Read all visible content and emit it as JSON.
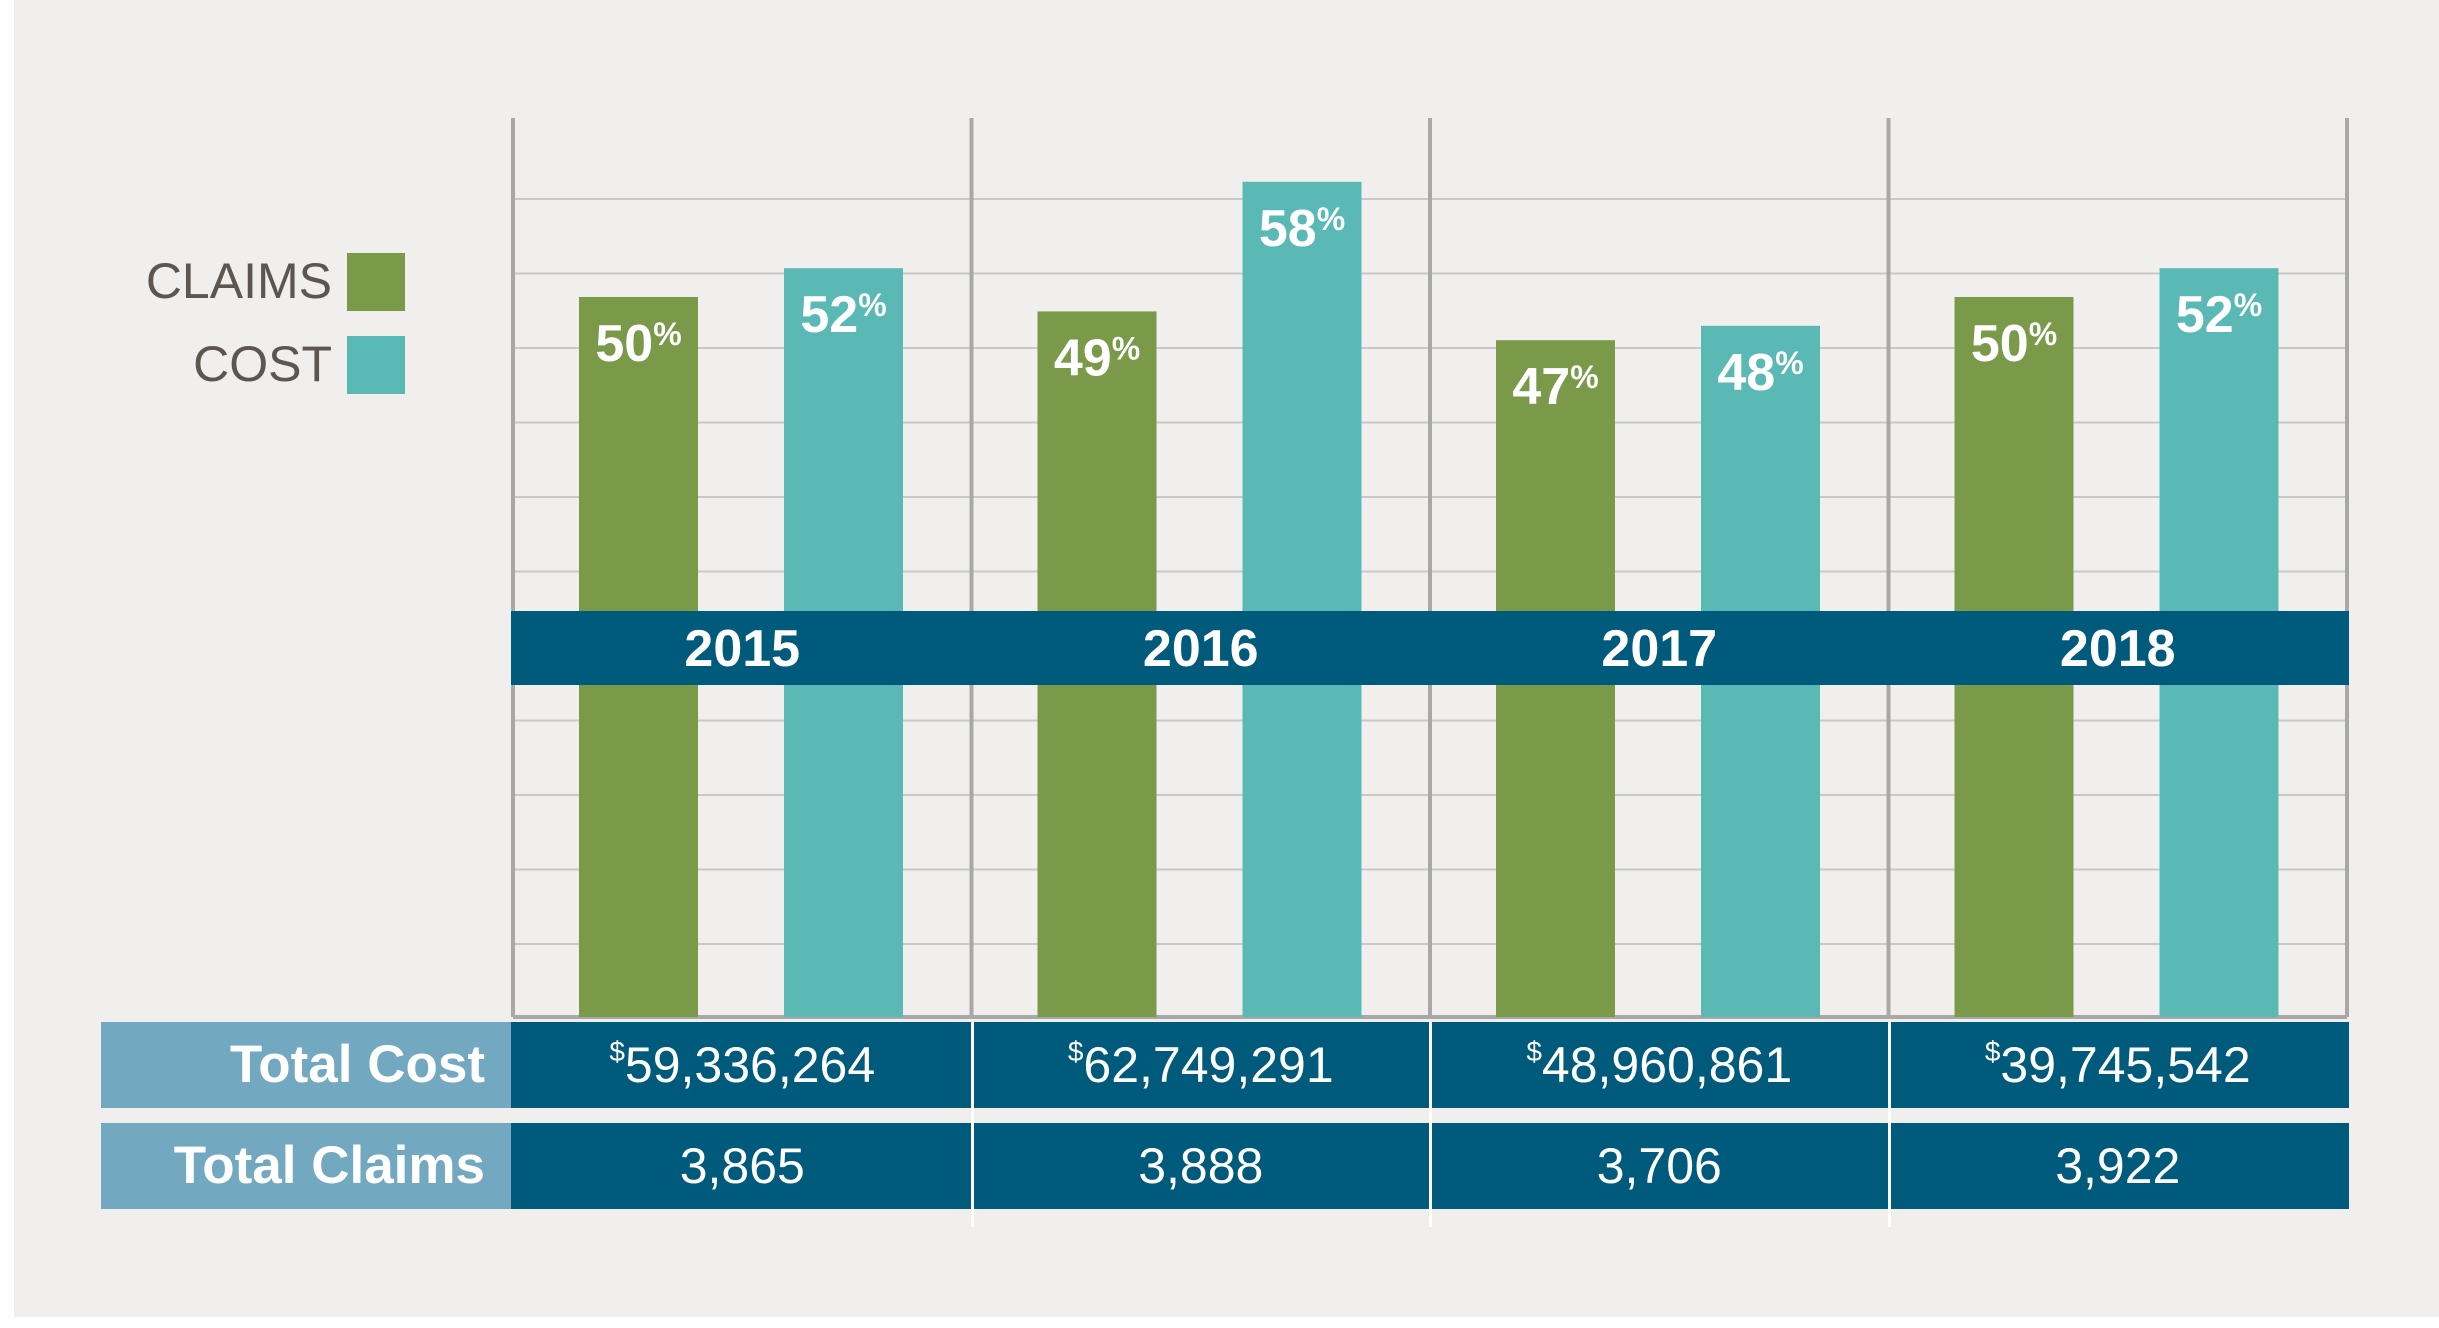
{
  "chart_data": {
    "type": "bar",
    "categories": [
      "2015",
      "2016",
      "2017",
      "2018"
    ],
    "series": [
      {
        "name": "CLAIMS",
        "color": "#7a9a4a",
        "values": [
          50,
          49,
          47,
          50
        ]
      },
      {
        "name": "COST",
        "color": "#5ab8b5",
        "values": [
          52,
          58,
          48,
          52
        ]
      }
    ],
    "value_suffix": "%",
    "grid": true,
    "legend": "left",
    "table": {
      "rows": [
        {
          "label": "Total Cost",
          "currency_symbol": "$",
          "values": [
            "59,336,264",
            "62,749,291",
            "48,960,861",
            "39,745,542"
          ]
        },
        {
          "label": "Total Claims",
          "currency_symbol": "",
          "values": [
            "3,865",
            "3,888",
            "3,706",
            "3,922"
          ]
        }
      ]
    }
  },
  "colors": {
    "background": "#f0efed",
    "grid": "#c8c8c8",
    "divider": "#a8a8a8",
    "band": "#005a7c",
    "row_label": "#72a9c0",
    "legend_text": "#5d5550"
  }
}
